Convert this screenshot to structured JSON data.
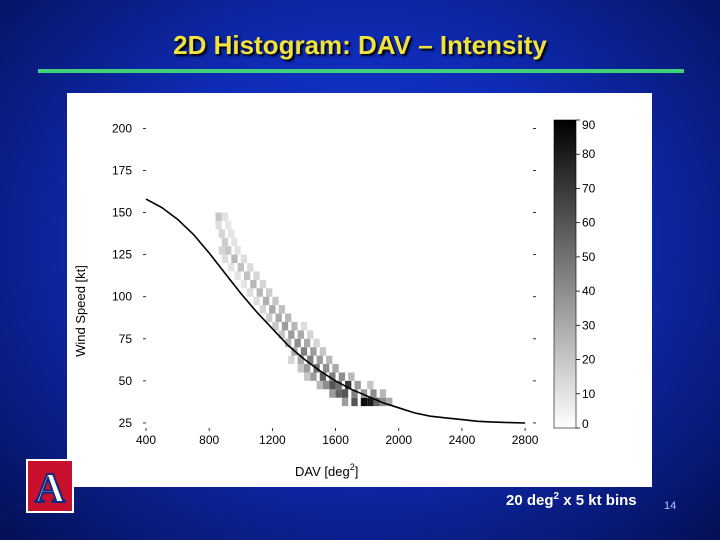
{
  "slide": {
    "title": "2D Histogram: DAV – Intensity",
    "footnote_pre": "20 deg",
    "footnote_sup": "2",
    "footnote_post": " x 5 kt bins",
    "page_number": "14",
    "logo_letter": "A"
  },
  "colors": {
    "background": "#1030c8",
    "title": "#f2e23c",
    "rule": "#3fd07a"
  },
  "chart_data": {
    "type": "heatmap",
    "title": "",
    "xlabel_main": "DAV [deg",
    "xlabel_sup": "2",
    "xlabel_end": "]",
    "ylabel": "Wind Speed [kt]",
    "xlim": [
      400,
      2850
    ],
    "ylim": [
      22,
      205
    ],
    "x_ticks": [
      "400",
      "800",
      "1200",
      "1600",
      "2000",
      "2400",
      "2800"
    ],
    "y_ticks": [
      "200",
      "175",
      "150",
      "125",
      "100",
      "75",
      "50",
      "25"
    ],
    "x_tick_values": [
      400,
      800,
      1200,
      1600,
      2000,
      2400,
      2800
    ],
    "y_tick_values": [
      200,
      175,
      150,
      125,
      100,
      75,
      50,
      25
    ],
    "colorbar": {
      "range": [
        0,
        90
      ],
      "ticks": [
        "90",
        "80",
        "70",
        "60",
        "50",
        "40",
        "30",
        "20",
        "10",
        "0"
      ],
      "tick_values": [
        90,
        80,
        70,
        60,
        50,
        40,
        30,
        20,
        10,
        0
      ]
    },
    "cells_note": "approximate counts read from grayscale; x bin 20 deg^2, y bin 5 kt",
    "cells": [
      [
        1760,
        35,
        85
      ],
      [
        1800,
        35,
        80
      ],
      [
        1700,
        35,
        60
      ],
      [
        1840,
        35,
        55
      ],
      [
        1880,
        35,
        40
      ],
      [
        1920,
        35,
        30
      ],
      [
        1640,
        35,
        35
      ],
      [
        1600,
        40,
        55
      ],
      [
        1640,
        40,
        60
      ],
      [
        1700,
        40,
        45
      ],
      [
        1760,
        40,
        35
      ],
      [
        1820,
        40,
        40
      ],
      [
        1560,
        40,
        35
      ],
      [
        1880,
        40,
        25
      ],
      [
        1560,
        45,
        60
      ],
      [
        1600,
        45,
        50
      ],
      [
        1660,
        45,
        70
      ],
      [
        1520,
        45,
        40
      ],
      [
        1720,
        45,
        35
      ],
      [
        1480,
        45,
        25
      ],
      [
        1800,
        45,
        20
      ],
      [
        1500,
        50,
        55
      ],
      [
        1560,
        50,
        45
      ],
      [
        1440,
        50,
        35
      ],
      [
        1620,
        50,
        40
      ],
      [
        1400,
        50,
        20
      ],
      [
        1680,
        50,
        25
      ],
      [
        1460,
        55,
        50
      ],
      [
        1520,
        55,
        40
      ],
      [
        1400,
        55,
        35
      ],
      [
        1580,
        55,
        30
      ],
      [
        1360,
        55,
        20
      ],
      [
        1420,
        60,
        45
      ],
      [
        1480,
        60,
        35
      ],
      [
        1360,
        60,
        30
      ],
      [
        1540,
        60,
        25
      ],
      [
        1300,
        60,
        15
      ],
      [
        1380,
        65,
        45
      ],
      [
        1440,
        65,
        35
      ],
      [
        1320,
        65,
        30
      ],
      [
        1500,
        65,
        20
      ],
      [
        1340,
        70,
        40
      ],
      [
        1400,
        70,
        30
      ],
      [
        1280,
        70,
        25
      ],
      [
        1460,
        70,
        15
      ],
      [
        1300,
        75,
        35
      ],
      [
        1360,
        75,
        30
      ],
      [
        1240,
        75,
        20
      ],
      [
        1420,
        75,
        15
      ],
      [
        1260,
        80,
        35
      ],
      [
        1320,
        80,
        25
      ],
      [
        1200,
        80,
        20
      ],
      [
        1380,
        80,
        12
      ],
      [
        1220,
        85,
        30
      ],
      [
        1280,
        85,
        25
      ],
      [
        1160,
        85,
        18
      ],
      [
        1180,
        90,
        30
      ],
      [
        1240,
        90,
        22
      ],
      [
        1120,
        90,
        15
      ],
      [
        1140,
        95,
        28
      ],
      [
        1200,
        95,
        20
      ],
      [
        1080,
        95,
        12
      ],
      [
        1100,
        100,
        25
      ],
      [
        1160,
        100,
        18
      ],
      [
        1040,
        100,
        12
      ],
      [
        1060,
        105,
        25
      ],
      [
        1120,
        105,
        15
      ],
      [
        1000,
        105,
        10
      ],
      [
        1020,
        110,
        22
      ],
      [
        1080,
        110,
        15
      ],
      [
        960,
        110,
        10
      ],
      [
        980,
        115,
        22
      ],
      [
        1040,
        115,
        12
      ],
      [
        920,
        115,
        10
      ],
      [
        940,
        120,
        25
      ],
      [
        1000,
        120,
        12
      ],
      [
        880,
        120,
        12
      ],
      [
        900,
        125,
        20
      ],
      [
        960,
        125,
        10
      ],
      [
        860,
        125,
        15
      ],
      [
        880,
        130,
        18
      ],
      [
        940,
        130,
        10
      ],
      [
        860,
        135,
        15
      ],
      [
        920,
        135,
        10
      ],
      [
        840,
        140,
        12
      ],
      [
        900,
        140,
        8
      ],
      [
        840,
        145,
        20
      ],
      [
        880,
        145,
        10
      ]
    ],
    "fit_curve": [
      [
        400,
        158
      ],
      [
        500,
        153
      ],
      [
        600,
        146
      ],
      [
        700,
        137
      ],
      [
        800,
        126
      ],
      [
        900,
        114
      ],
      [
        1000,
        102
      ],
      [
        1100,
        91
      ],
      [
        1200,
        81
      ],
      [
        1300,
        71
      ],
      [
        1400,
        63
      ],
      [
        1500,
        56
      ],
      [
        1600,
        50
      ],
      [
        1700,
        45
      ],
      [
        1800,
        41
      ],
      [
        1900,
        37
      ],
      [
        2000,
        34
      ],
      [
        2100,
        31
      ],
      [
        2200,
        29
      ],
      [
        2300,
        28
      ],
      [
        2400,
        27
      ],
      [
        2500,
        26
      ],
      [
        2600,
        25.5
      ],
      [
        2700,
        25.2
      ],
      [
        2800,
        25
      ]
    ]
  }
}
